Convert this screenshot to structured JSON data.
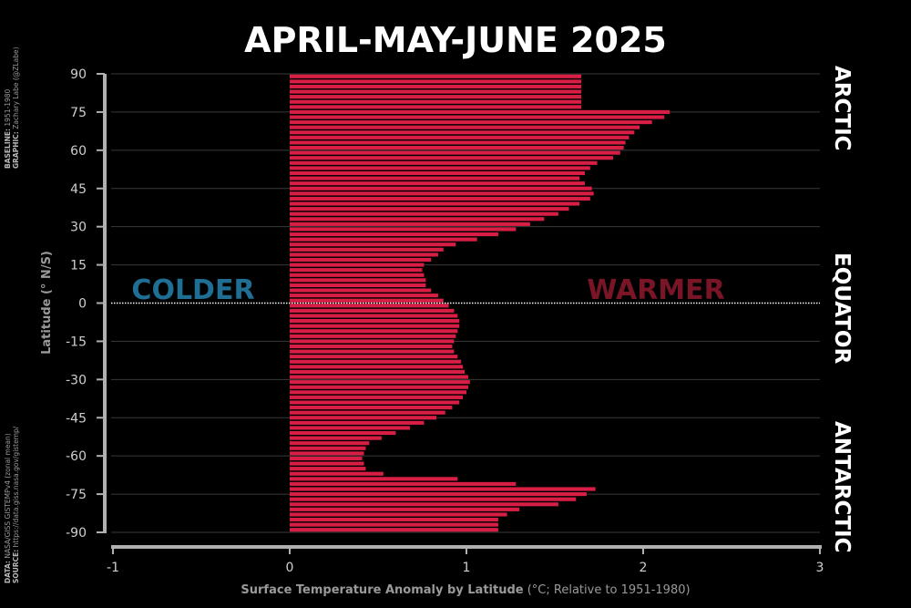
{
  "title": "APRIL-MAY-JUNE 2025",
  "credits": {
    "baseline_label": "BASELINE",
    "baseline_value": "1951-1980",
    "graphic_label": "GRAPHIC",
    "graphic_value": "Zachary Labe (@ZLabe)",
    "data_label": "DATA",
    "data_value": "NASA/GISS GISTEMPv4 (zonal mean)",
    "source_label": "SOURCE",
    "source_value": "https://data.giss.nasa.gov/gistemp/"
  },
  "annotations": {
    "colder": "COLDER",
    "warmer": "WARMER",
    "arctic": "ARCTIC",
    "equator": "EQUATOR",
    "antarctic": "ANTARCTIC"
  },
  "colors": {
    "bar": "#d81e44",
    "colder": "#1f6e94",
    "warmer": "#7a1427",
    "axis": "#b0b0b0",
    "grid": "#3a3a3a",
    "text": "#ffffff"
  },
  "chart_data": {
    "type": "bar",
    "orientation": "horizontal",
    "title": "APRIL-MAY-JUNE 2025",
    "xlabel": "Surface Temperature Anomaly by Latitude",
    "xlabel_units": "(°C; Relative to 1951-1980)",
    "ylabel": "Latitude (° N/S)",
    "xlim": [
      -1,
      3
    ],
    "ylim": [
      -90,
      90
    ],
    "xticks": [
      -1,
      0,
      1,
      2,
      3
    ],
    "yticks": [
      90,
      75,
      60,
      45,
      30,
      15,
      0,
      -15,
      -30,
      -45,
      -60,
      -75,
      -90
    ],
    "grid": "horizontal",
    "baseline_line": 0,
    "latitudes": [
      89,
      87,
      85,
      83,
      81,
      79,
      77,
      75,
      73,
      71,
      69,
      67,
      65,
      63,
      61,
      59,
      57,
      55,
      53,
      51,
      49,
      47,
      45,
      43,
      41,
      39,
      37,
      35,
      33,
      31,
      29,
      27,
      25,
      23,
      21,
      19,
      17,
      15,
      13,
      11,
      9,
      7,
      5,
      3,
      1,
      -1,
      -3,
      -5,
      -7,
      -9,
      -11,
      -13,
      -15,
      -17,
      -19,
      -21,
      -23,
      -25,
      -27,
      -29,
      -31,
      -33,
      -35,
      -37,
      -39,
      -41,
      -43,
      -45,
      -47,
      -49,
      -51,
      -53,
      -55,
      -57,
      -59,
      -61,
      -63,
      -65,
      -67,
      -69,
      -71,
      -73,
      -75,
      -77,
      -79,
      -81,
      -83,
      -85,
      -87,
      -89
    ],
    "values": [
      1.65,
      1.65,
      1.65,
      1.65,
      1.65,
      1.65,
      1.65,
      2.15,
      2.12,
      2.05,
      1.98,
      1.95,
      1.92,
      1.9,
      1.89,
      1.87,
      1.83,
      1.74,
      1.7,
      1.67,
      1.64,
      1.67,
      1.71,
      1.72,
      1.7,
      1.64,
      1.58,
      1.52,
      1.44,
      1.36,
      1.28,
      1.18,
      1.06,
      0.94,
      0.87,
      0.84,
      0.8,
      0.76,
      0.75,
      0.76,
      0.77,
      0.77,
      0.8,
      0.84,
      0.87,
      0.9,
      0.93,
      0.95,
      0.96,
      0.96,
      0.95,
      0.94,
      0.93,
      0.92,
      0.93,
      0.95,
      0.97,
      0.98,
      0.99,
      1.01,
      1.02,
      1.01,
      1.0,
      0.98,
      0.96,
      0.92,
      0.88,
      0.83,
      0.76,
      0.68,
      0.6,
      0.52,
      0.45,
      0.43,
      0.42,
      0.41,
      0.42,
      0.43,
      0.53,
      0.95,
      1.28,
      1.73,
      1.68,
      1.62,
      1.52,
      1.3,
      1.23,
      1.18,
      1.18,
      1.18
    ]
  }
}
